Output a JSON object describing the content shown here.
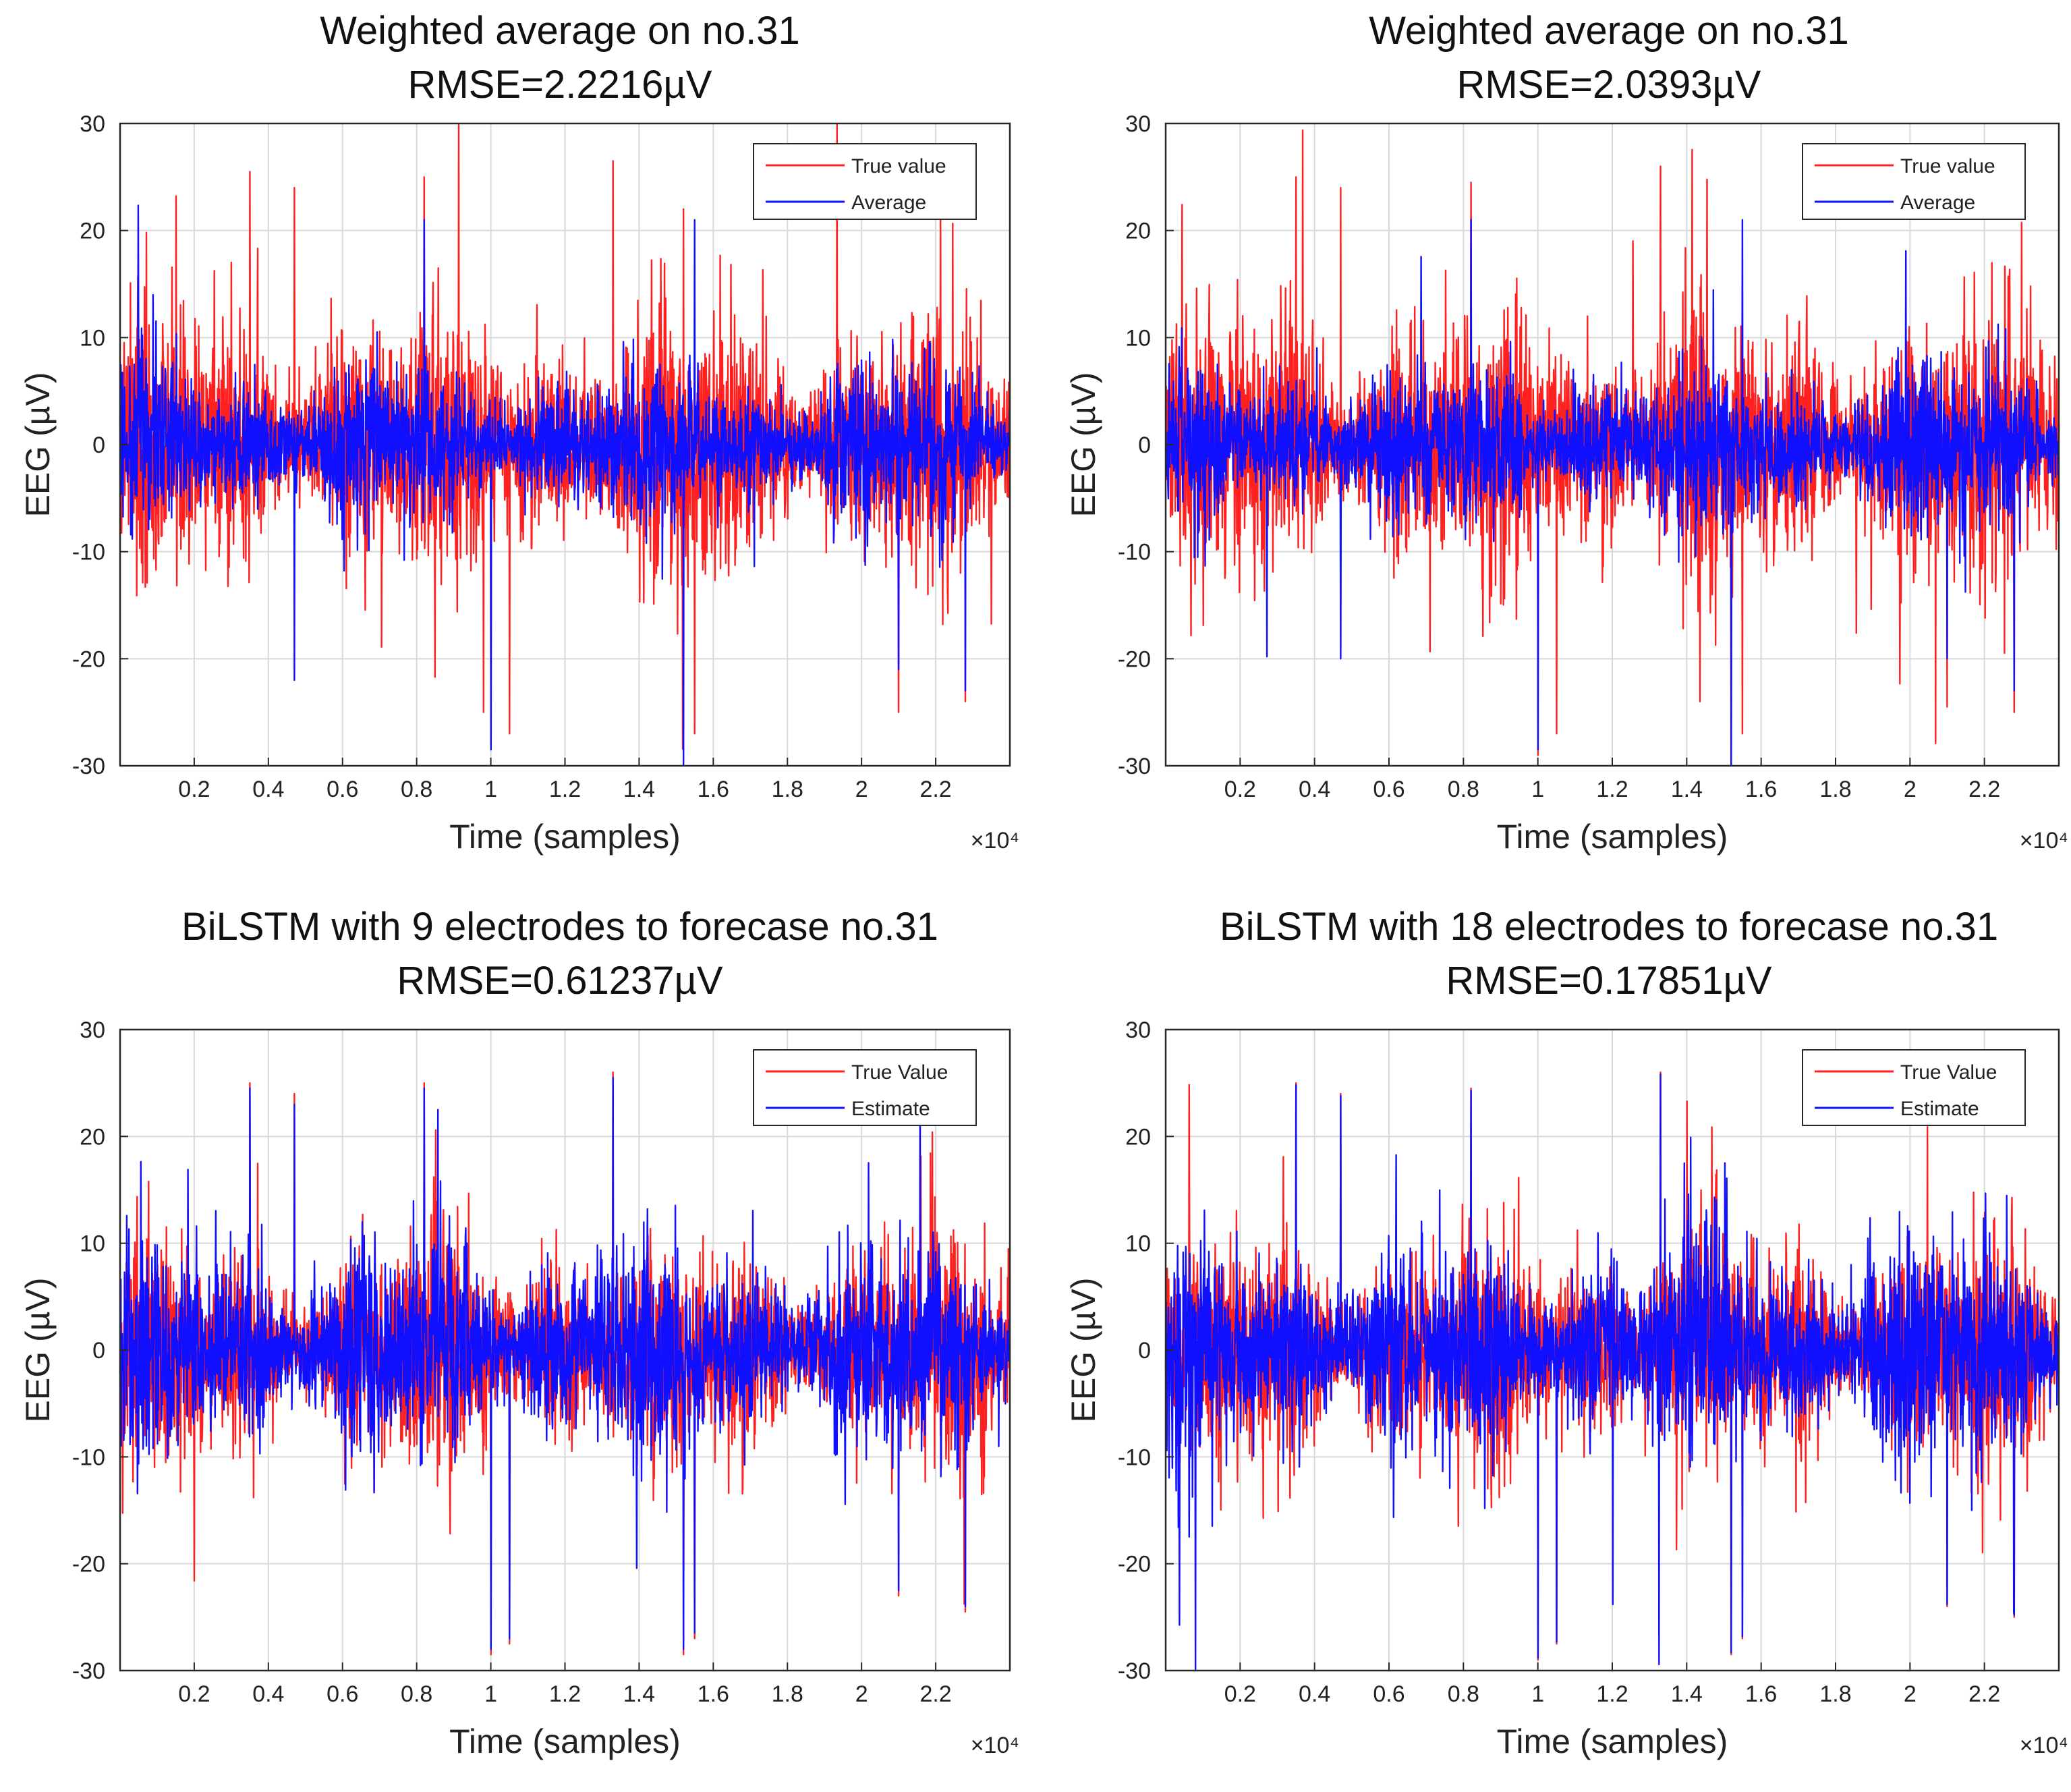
{
  "colors": {
    "true_series": "#ff2020",
    "estimate_series": "#1010ff",
    "grid": "#d9d9d9",
    "axes": "#262626"
  },
  "chart_data": [
    {
      "type": "line",
      "title": "Weighted average on no.31",
      "subtitle": "RMSE=2.2216µV",
      "xlabel": "Time (samples)",
      "ylabel": "EEG (µV)",
      "x_exponent_label": "×10⁴",
      "xlim": [
        0,
        2.4
      ],
      "ylim": [
        -30,
        30
      ],
      "x_ticks": [
        0.2,
        0.4,
        0.6,
        0.8,
        1,
        1.2,
        1.4,
        1.6,
        1.8,
        2,
        2.2
      ],
      "x_tick_labels": [
        "0.2",
        "0.4",
        "0.6",
        "0.8",
        "1",
        "1.2",
        "1.4",
        "1.6",
        "1.8",
        "2",
        "2.2"
      ],
      "y_ticks": [
        -30,
        -20,
        -10,
        0,
        10,
        20,
        30
      ],
      "y_tick_labels": [
        "-30",
        "-20",
        "-10",
        "0",
        "10",
        "20",
        "30"
      ],
      "grid": true,
      "legend_position": "top-right",
      "series": [
        {
          "name": "True value",
          "color": "#ff2020",
          "envelope": [
            -12,
            12
          ],
          "spikes": [
            [
              0.35,
              25.5
            ],
            [
              0.47,
              24
            ],
            [
              0.82,
              25
            ],
            [
              0.98,
              -25
            ],
            [
              1.0,
              -28
            ],
            [
              1.05,
              -27
            ],
            [
              1.33,
              26.5
            ],
            [
              1.52,
              22
            ],
            [
              1.55,
              -27
            ],
            [
              2.1,
              -25
            ],
            [
              2.28,
              -24
            ]
          ]
        },
        {
          "name": "Average",
          "color": "#1010ff",
          "envelope": [
            -7,
            7
          ],
          "spikes": [
            [
              0.47,
              -22
            ],
            [
              0.82,
              21
            ],
            [
              1.0,
              -28.5
            ],
            [
              1.52,
              -30
            ],
            [
              1.55,
              21
            ],
            [
              2.1,
              -21
            ],
            [
              2.28,
              -23
            ]
          ]
        }
      ]
    },
    {
      "type": "line",
      "title": "Weighted average on no.31",
      "subtitle": "RMSE=2.0393µV",
      "xlabel": "Time (samples)",
      "ylabel": "EEG (µV)",
      "x_exponent_label": "×10⁴",
      "xlim": [
        0,
        2.4
      ],
      "ylim": [
        -30,
        30
      ],
      "x_ticks": [
        0.2,
        0.4,
        0.6,
        0.8,
        1,
        1.2,
        1.4,
        1.6,
        1.8,
        2,
        2.2
      ],
      "x_tick_labels": [
        "0.2",
        "0.4",
        "0.6",
        "0.8",
        "1",
        "1.2",
        "1.4",
        "1.6",
        "1.8",
        "2",
        "2.2"
      ],
      "y_ticks": [
        -30,
        -20,
        -10,
        0,
        10,
        20,
        30
      ],
      "y_tick_labels": [
        "-30",
        "-20",
        "-10",
        "0",
        "10",
        "20",
        "30"
      ],
      "grid": true,
      "legend_position": "top-right",
      "series": [
        {
          "name": "True value",
          "color": "#ff2020",
          "envelope": [
            -12,
            12
          ],
          "spikes": [
            [
              0.35,
              25
            ],
            [
              0.47,
              24
            ],
            [
              0.82,
              24.5
            ],
            [
              1.0,
              -29
            ],
            [
              1.05,
              -27
            ],
            [
              1.33,
              26
            ],
            [
              1.52,
              -30
            ],
            [
              1.55,
              -27
            ],
            [
              2.1,
              -24.5
            ],
            [
              2.28,
              -25
            ]
          ]
        },
        {
          "name": "Average",
          "color": "#1010ff",
          "envelope": [
            -7,
            7
          ],
          "spikes": [
            [
              0.47,
              -20
            ],
            [
              0.82,
              21
            ],
            [
              1.0,
              -28.5
            ],
            [
              1.52,
              -30
            ],
            [
              1.55,
              21
            ],
            [
              2.1,
              -20
            ],
            [
              2.28,
              -23
            ]
          ]
        }
      ]
    },
    {
      "type": "line",
      "title": "BiLSTM with 9 electrodes to forecase no.31",
      "subtitle": "RMSE=0.61237µV",
      "xlabel": "Time (samples)",
      "ylabel": "EEG (µV)",
      "x_exponent_label": "×10⁴",
      "xlim": [
        0,
        2.4
      ],
      "ylim": [
        -30,
        30
      ],
      "x_ticks": [
        0.2,
        0.4,
        0.6,
        0.8,
        1,
        1.2,
        1.4,
        1.6,
        1.8,
        2,
        2.2
      ],
      "x_tick_labels": [
        "0.2",
        "0.4",
        "0.6",
        "0.8",
        "1",
        "1.2",
        "1.4",
        "1.6",
        "1.8",
        "2",
        "2.2"
      ],
      "y_ticks": [
        -30,
        -20,
        -10,
        0,
        10,
        20,
        30
      ],
      "y_tick_labels": [
        "-30",
        "-20",
        "-10",
        "0",
        "10",
        "20",
        "30"
      ],
      "grid": true,
      "legend_position": "top-right",
      "series": [
        {
          "name": "True Value",
          "color": "#ff2020",
          "envelope": [
            -10,
            10
          ],
          "spikes": [
            [
              0.35,
              25
            ],
            [
              0.47,
              24
            ],
            [
              0.82,
              25
            ],
            [
              1.0,
              -28.5
            ],
            [
              1.05,
              -27.5
            ],
            [
              1.33,
              26
            ],
            [
              1.52,
              -28.5
            ],
            [
              1.55,
              -27
            ],
            [
              2.1,
              -23
            ],
            [
              2.28,
              -24.5
            ]
          ]
        },
        {
          "name": "Estimate",
          "color": "#1010ff",
          "envelope": [
            -9.5,
            9.5
          ],
          "spikes": [
            [
              0.35,
              24.5
            ],
            [
              0.47,
              23
            ],
            [
              0.82,
              24.5
            ],
            [
              1.0,
              -28
            ],
            [
              1.05,
              -27
            ],
            [
              1.33,
              25.5
            ],
            [
              1.52,
              -28
            ],
            [
              1.55,
              -26.5
            ],
            [
              2.1,
              -22.5
            ],
            [
              2.28,
              -24
            ]
          ]
        }
      ]
    },
    {
      "type": "line",
      "title": "BiLSTM with 18 electrodes to forecase no.31",
      "subtitle": "RMSE=0.17851µV",
      "xlabel": "Time (samples)",
      "ylabel": "EEG (µV)",
      "x_exponent_label": "×10⁴",
      "xlim": [
        0,
        2.4
      ],
      "ylim": [
        -30,
        30
      ],
      "x_ticks": [
        0.2,
        0.4,
        0.6,
        0.8,
        1,
        1.2,
        1.4,
        1.6,
        1.8,
        2,
        2.2
      ],
      "x_tick_labels": [
        "0.2",
        "0.4",
        "0.6",
        "0.8",
        "1",
        "1.2",
        "1.4",
        "1.6",
        "1.8",
        "2",
        "2.2"
      ],
      "y_ticks": [
        -30,
        -20,
        -10,
        0,
        10,
        20,
        30
      ],
      "y_tick_labels": [
        "-30",
        "-20",
        "-10",
        "0",
        "10",
        "20",
        "30"
      ],
      "grid": true,
      "legend_position": "top-right",
      "series": [
        {
          "name": "True Value",
          "color": "#ff2020",
          "envelope": [
            -10,
            10
          ],
          "spikes": [
            [
              0.35,
              25
            ],
            [
              0.47,
              24
            ],
            [
              0.82,
              24.5
            ],
            [
              1.0,
              -29
            ],
            [
              1.05,
              -27.5
            ],
            [
              1.33,
              26
            ],
            [
              1.52,
              -28.5
            ],
            [
              1.55,
              -27
            ],
            [
              2.1,
              -24
            ],
            [
              2.28,
              -25
            ]
          ]
        },
        {
          "name": "Estimate",
          "color": "#1010ff",
          "envelope": [
            -9.8,
            9.8
          ],
          "spikes": [
            [
              0.35,
              24.8
            ],
            [
              0.47,
              23.8
            ],
            [
              0.82,
              24.3
            ],
            [
              1.0,
              -28.8
            ],
            [
              1.05,
              -27.3
            ],
            [
              1.33,
              25.8
            ],
            [
              1.52,
              -28.3
            ],
            [
              1.55,
              -26.8
            ],
            [
              2.1,
              -23.8
            ],
            [
              2.28,
              -24.8
            ]
          ]
        }
      ]
    }
  ]
}
